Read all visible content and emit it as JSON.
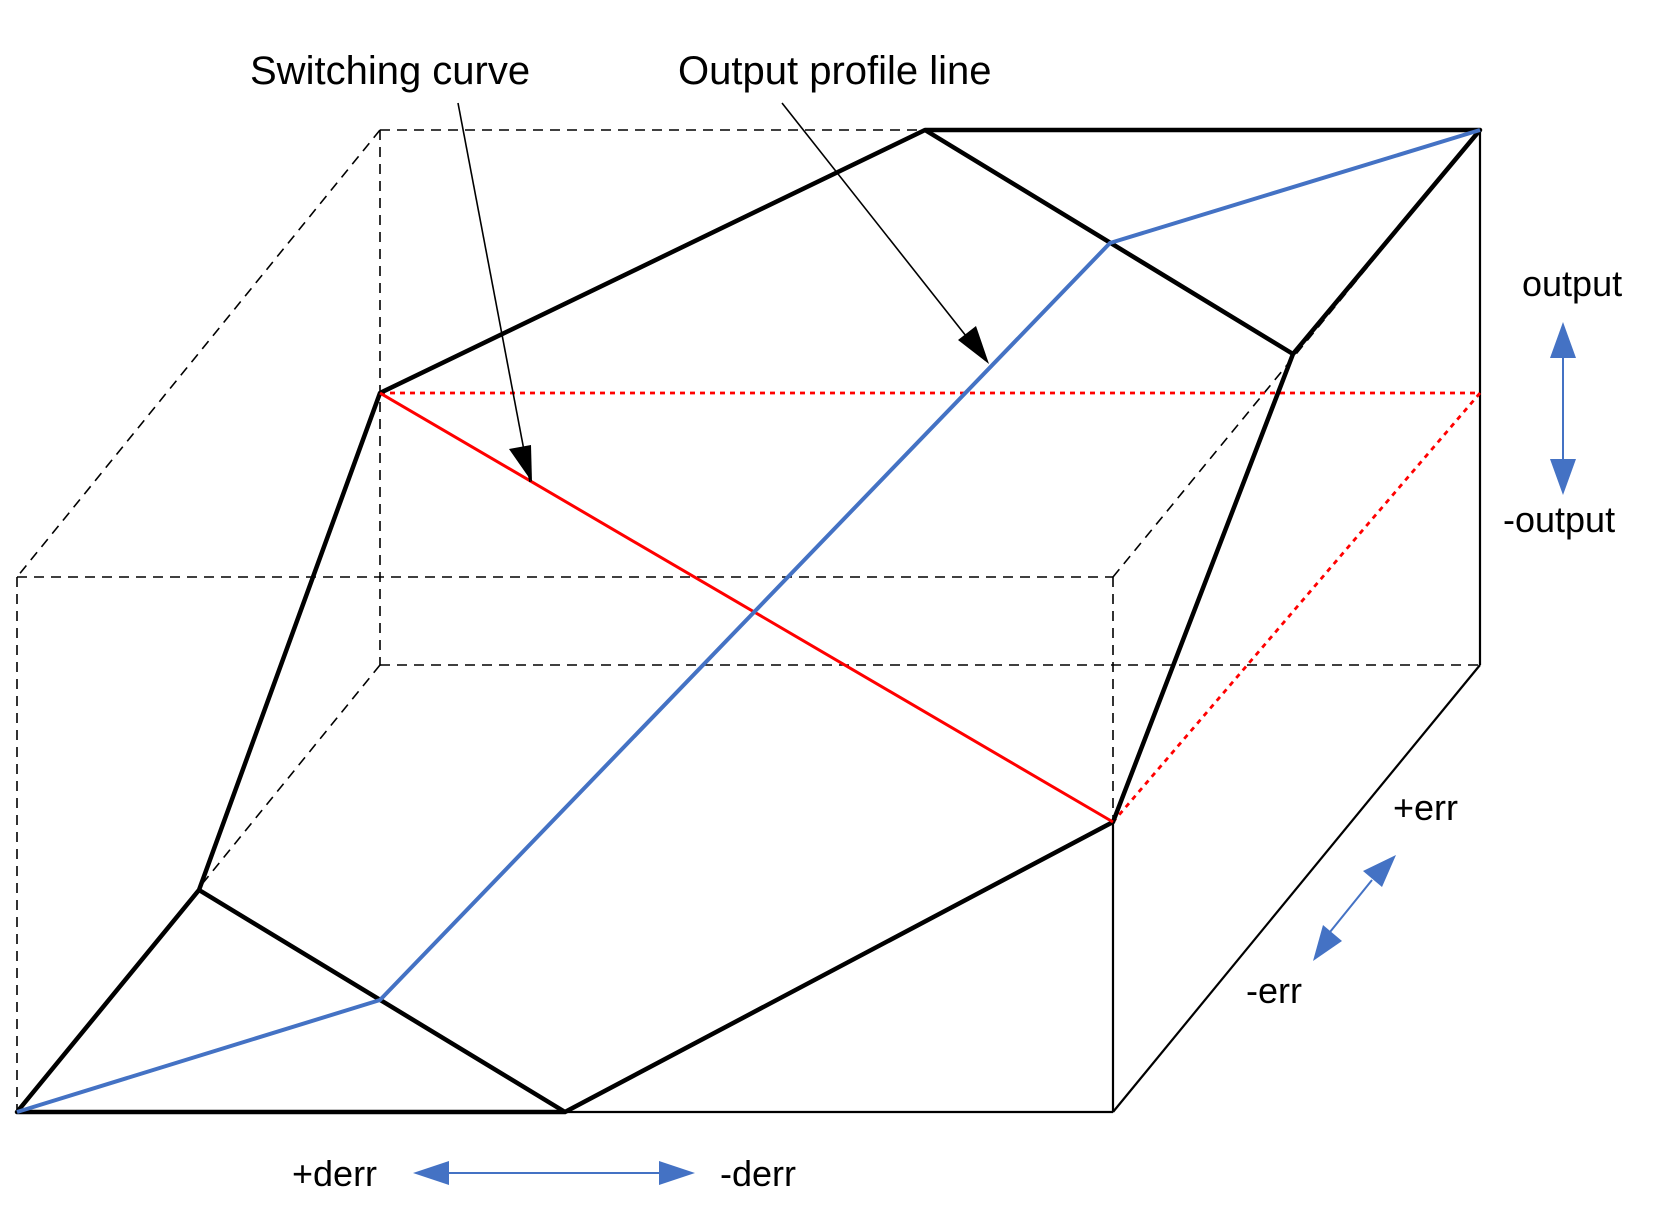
{
  "labels": {
    "switching_curve": "Switching curve",
    "output_profile_line": "Output profile line",
    "output": "output",
    "neg_output": "-output",
    "pos_err": "+err",
    "neg_err": "-err",
    "pos_derr": "+derr",
    "neg_derr": "-derr"
  },
  "colors": {
    "surface_edge": "#000000",
    "box_edge": "#000000",
    "switching_curve": "#ff0000",
    "output_profile": "#4472c4",
    "axis_arrow": "#4472c4"
  }
}
